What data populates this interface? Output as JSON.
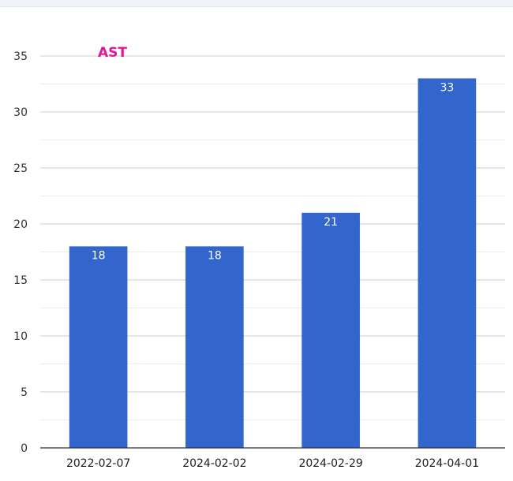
{
  "chart_data": {
    "type": "bar",
    "title": "AST",
    "categories": [
      "2022-02-07",
      "2024-02-02",
      "2024-02-29",
      "2024-04-01"
    ],
    "values": [
      18,
      18,
      21,
      33
    ],
    "data_labels": [
      "18",
      "18",
      "21",
      "33"
    ],
    "ylim": [
      0,
      35
    ],
    "yticks": [
      0,
      5,
      10,
      15,
      20,
      25,
      30,
      35
    ],
    "ytick_labels": [
      "0",
      "5",
      "10",
      "15",
      "20",
      "25",
      "30",
      "35"
    ],
    "grid": true,
    "colors": {
      "bar": "#3366cc",
      "title": "#e6149a",
      "grid_major": "#cccccc",
      "grid_minor": "#ebebeb",
      "axis": "#333333"
    }
  }
}
